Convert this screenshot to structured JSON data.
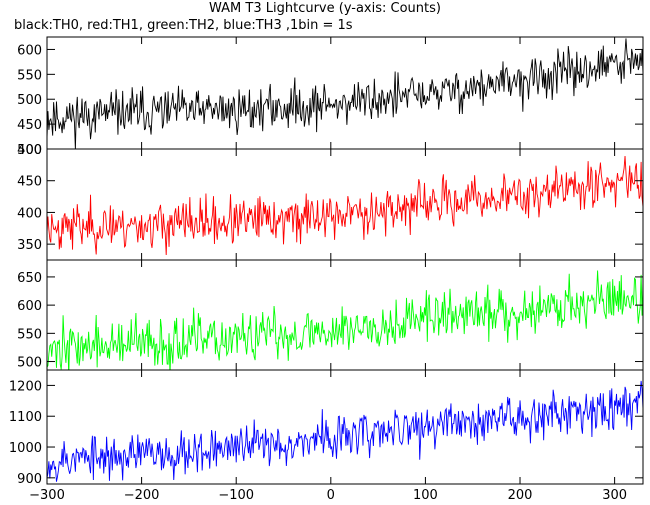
{
  "title": "WAM T3 Lightcurve (y-axis: Counts)",
  "subtitle": "black:TH0, red:TH1, green:TH2, blue:TH3 ,1bin = 1s",
  "chart_data": {
    "type": "line",
    "xlim": [
      -300,
      330
    ],
    "xticks": [
      -300,
      -200,
      -100,
      0,
      100,
      200,
      300
    ],
    "xtick_labels": [
      "−300",
      "−200",
      "−100",
      "0",
      "100",
      "200",
      "300"
    ],
    "panels": [
      {
        "color": "#000000",
        "ylim": [
          400,
          625
        ],
        "yticks": [
          400,
          450,
          500,
          550,
          600
        ],
        "trend": [
          [
            -300,
            462
          ],
          [
            -200,
            475
          ],
          [
            -100,
            478
          ],
          [
            0,
            490
          ],
          [
            100,
            510
          ],
          [
            200,
            535
          ],
          [
            300,
            570
          ],
          [
            330,
            575
          ]
        ],
        "noise": 22,
        "seed": 11
      },
      {
        "color": "#ff0000",
        "ylim": [
          325,
          500
        ],
        "yticks": [
          350,
          400,
          450,
          500
        ],
        "trend": [
          [
            -300,
            378
          ],
          [
            -200,
            380
          ],
          [
            -100,
            385
          ],
          [
            0,
            395
          ],
          [
            100,
            412
          ],
          [
            200,
            428
          ],
          [
            300,
            448
          ],
          [
            330,
            452
          ]
        ],
        "noise": 18,
        "seed": 23
      },
      {
        "color": "#00ff00",
        "ylim": [
          485,
          680
        ],
        "yticks": [
          500,
          550,
          600,
          650
        ],
        "trend": [
          [
            -300,
            525
          ],
          [
            -200,
            530
          ],
          [
            -100,
            540
          ],
          [
            0,
            555
          ],
          [
            100,
            578
          ],
          [
            200,
            590
          ],
          [
            300,
            612
          ],
          [
            330,
            615
          ]
        ],
        "noise": 22,
        "seed": 37
      },
      {
        "color": "#0000ff",
        "ylim": [
          880,
          1250
        ],
        "yticks": [
          900,
          1000,
          1100,
          1200
        ],
        "trend": [
          [
            -300,
            955
          ],
          [
            -200,
            975
          ],
          [
            -100,
            1000
          ],
          [
            0,
            1030
          ],
          [
            100,
            1065
          ],
          [
            200,
            1100
          ],
          [
            300,
            1135
          ],
          [
            330,
            1145
          ]
        ],
        "noise": 35,
        "seed": 53
      }
    ]
  }
}
